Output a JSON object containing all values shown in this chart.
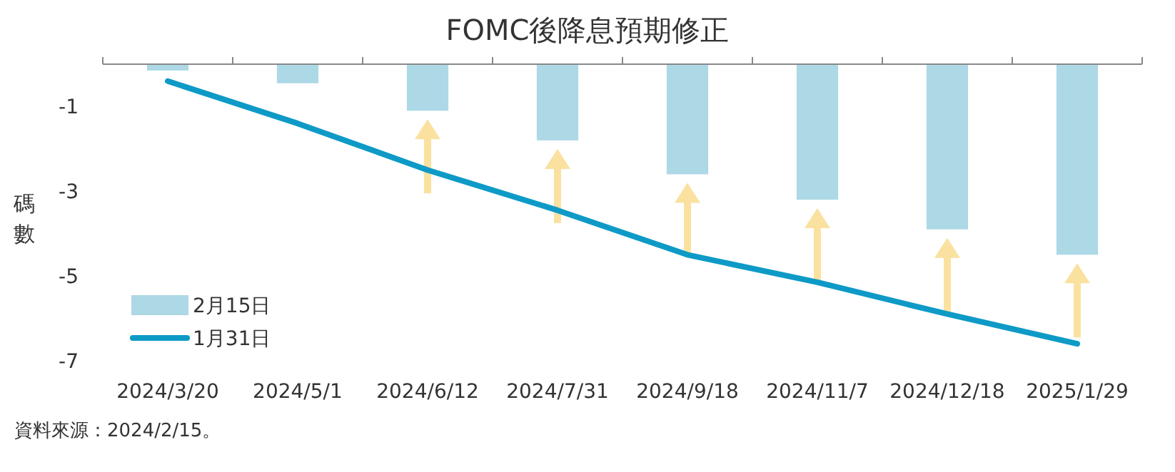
{
  "chart_data": {
    "type": "bar",
    "title": "FOMC後降息預期修正",
    "ylabel": "碼數",
    "categories": [
      "2024/3/20",
      "2024/5/1",
      "2024/6/12",
      "2024/7/31",
      "2024/9/18",
      "2024/11/7",
      "2024/12/18",
      "2025/1/29"
    ],
    "series": [
      {
        "name": "2月15日",
        "color": "#add8e6",
        "values": [
          -0.15,
          -0.45,
          -1.1,
          -1.8,
          -2.6,
          -3.2,
          -3.9,
          -4.5
        ]
      },
      {
        "name": "1月31日",
        "type": "line",
        "color": "#0e9ac6",
        "values": [
          -0.4,
          -1.4,
          -2.5,
          -3.45,
          -4.5,
          -5.15,
          -5.9,
          -6.6
        ]
      }
    ],
    "ylim": [
      -7,
      0
    ],
    "yticks": [
      -1,
      -3,
      -5,
      -7
    ],
    "legend": "bottom left",
    "annotations": [
      "資料來源：2024/2/15。"
    ]
  }
}
